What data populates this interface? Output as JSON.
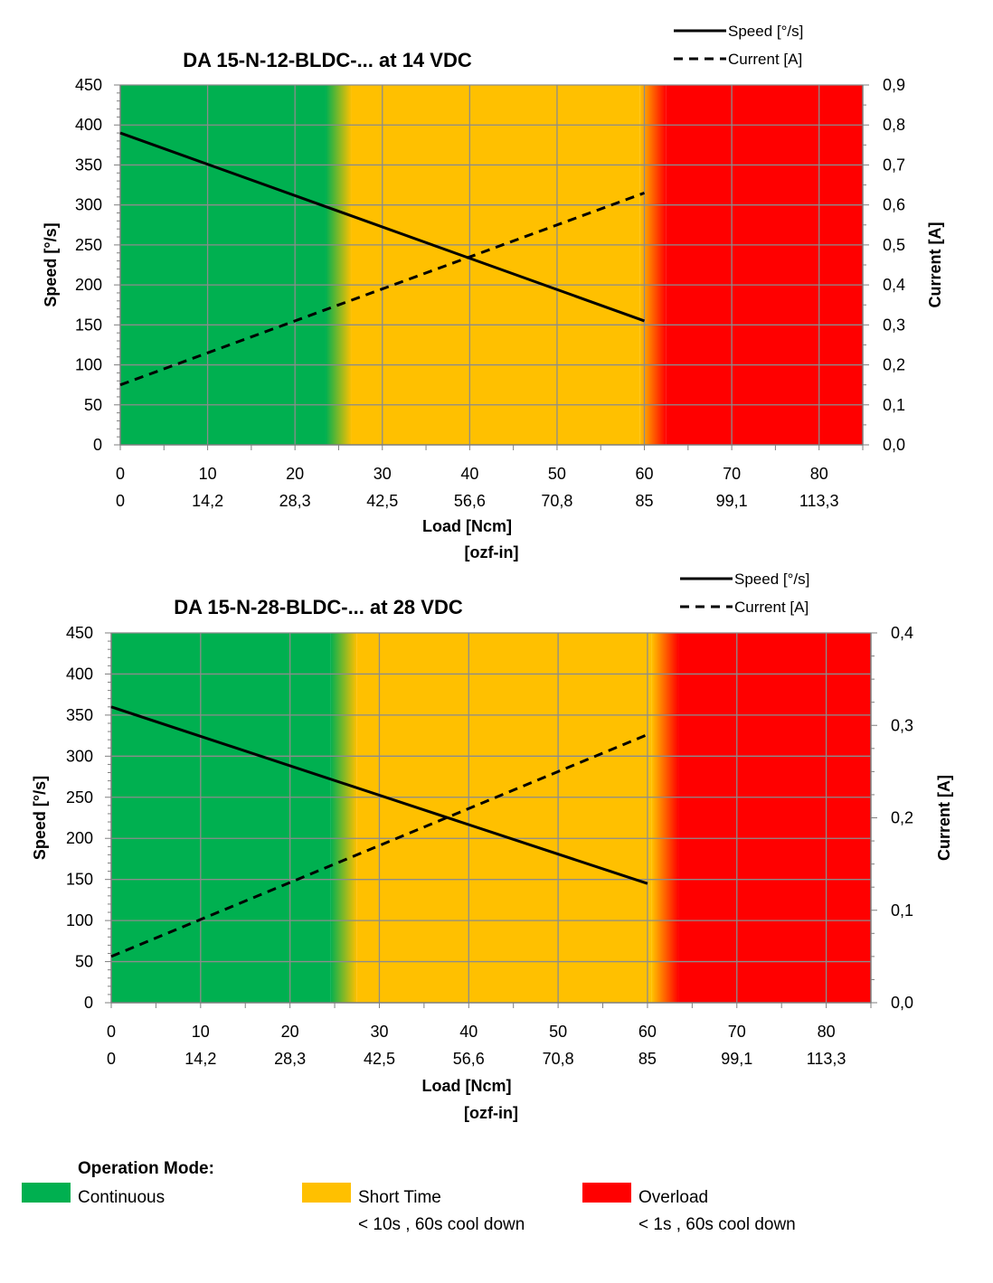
{
  "chart_data": [
    {
      "type": "line",
      "title": "DA 15-N-12-BLDC-... at 14 VDC",
      "xlabel": "Load [Ncm]",
      "xlabel_secondary": "[ozf-in]",
      "ylabel": "Speed [°/s]",
      "y2label": "Current [A]",
      "xlim": [
        0,
        85
      ],
      "ylim": [
        0,
        450
      ],
      "y2lim": [
        0,
        0.9
      ],
      "x_ticks": [
        0,
        10,
        20,
        30,
        40,
        50,
        60,
        70,
        80
      ],
      "x_tick_labels": [
        "0",
        "10",
        "20",
        "30",
        "40",
        "50",
        "60",
        "70",
        "80"
      ],
      "x2_tick_labels": [
        "0",
        "14,2",
        "28,3",
        "42,5",
        "56,6",
        "70,8",
        "85",
        "99,1",
        "113,3"
      ],
      "y_ticks": [
        0,
        50,
        100,
        150,
        200,
        250,
        300,
        350,
        400,
        450
      ],
      "y_tick_labels": [
        "0",
        "50",
        "100",
        "150",
        "200",
        "250",
        "300",
        "350",
        "400",
        "450"
      ],
      "y2_ticks": [
        0,
        0.1,
        0.2,
        0.3,
        0.4,
        0.5,
        0.6,
        0.7,
        0.8,
        0.9
      ],
      "y2_tick_labels": [
        "0,0",
        "0,1",
        "0,2",
        "0,3",
        "0,4",
        "0,5",
        "0,6",
        "0,7",
        "0,8",
        "0,9"
      ],
      "grid": true,
      "legend_position": "top-right",
      "zones": [
        {
          "mode": "Continuous",
          "from": 0,
          "to": 25,
          "color": "#00b050"
        },
        {
          "mode": "Short Time",
          "from": 25,
          "to": 61,
          "color": "#ffc000"
        },
        {
          "mode": "Overload",
          "from": 61,
          "to": 85,
          "color": "#ff0000"
        }
      ],
      "series": [
        {
          "name": "Speed [°/s]",
          "axis": "left",
          "style": "solid",
          "x": [
            0,
            60
          ],
          "y": [
            390,
            155
          ]
        },
        {
          "name": "Current [A]",
          "axis": "right",
          "style": "dashed",
          "x": [
            0,
            60
          ],
          "y": [
            0.15,
            0.63
          ]
        }
      ]
    },
    {
      "type": "line",
      "title": "DA 15-N-28-BLDC-... at 28 VDC",
      "xlabel": "Load [Ncm]",
      "xlabel_secondary": "[ozf-in]",
      "ylabel": "Speed [°/s]",
      "y2label": "Current [A]",
      "xlim": [
        0,
        85
      ],
      "ylim": [
        0,
        450
      ],
      "y2lim": [
        0,
        0.4
      ],
      "x_ticks": [
        0,
        10,
        20,
        30,
        40,
        50,
        60,
        70,
        80
      ],
      "x_tick_labels": [
        "0",
        "10",
        "20",
        "30",
        "40",
        "50",
        "60",
        "70",
        "80"
      ],
      "x2_tick_labels": [
        "0",
        "14,2",
        "28,3",
        "42,5",
        "56,6",
        "70,8",
        "85",
        "99,1",
        "113,3"
      ],
      "y_ticks": [
        0,
        50,
        100,
        150,
        200,
        250,
        300,
        350,
        400,
        450
      ],
      "y_tick_labels": [
        "0",
        "50",
        "100",
        "150",
        "200",
        "250",
        "300",
        "350",
        "400",
        "450"
      ],
      "y2_ticks": [
        0,
        0.1,
        0.2,
        0.3,
        0.4
      ],
      "y2_tick_labels": [
        "0,0",
        "0,1",
        "0,2",
        "0,3",
        "0,4"
      ],
      "grid": true,
      "legend_position": "top-right",
      "zones": [
        {
          "mode": "Continuous",
          "from": 0,
          "to": 26,
          "color": "#00b050"
        },
        {
          "mode": "Short Time",
          "from": 26,
          "to": 62,
          "color": "#ffc000"
        },
        {
          "mode": "Overload",
          "from": 62,
          "to": 85,
          "color": "#ff0000"
        }
      ],
      "series": [
        {
          "name": "Speed [°/s]",
          "axis": "left",
          "style": "solid",
          "x": [
            0,
            60
          ],
          "y": [
            360,
            145
          ]
        },
        {
          "name": "Current [A]",
          "axis": "right",
          "style": "dashed",
          "x": [
            0,
            60
          ],
          "y": [
            0.05,
            0.29
          ]
        }
      ]
    }
  ],
  "operation_mode": {
    "heading": "Operation Mode:",
    "items": [
      {
        "label": "Continuous",
        "detail": "",
        "color": "#00b050"
      },
      {
        "label": "Short Time",
        "detail": "< 10s , 60s cool down",
        "color": "#ffc000"
      },
      {
        "label": "Overload",
        "detail": "< 1s , 60s cool down",
        "color": "#ff0000"
      }
    ]
  }
}
